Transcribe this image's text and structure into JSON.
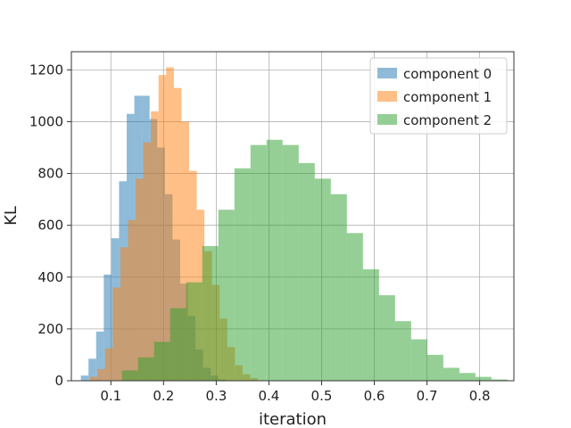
{
  "chart_data": {
    "type": "histogram",
    "xlabel": "iteration",
    "ylabel": "KL",
    "xlim": [
      0.025,
      0.865
    ],
    "ylim": [
      0,
      1270
    ],
    "xticks": [
      0.1,
      0.2,
      0.3,
      0.4,
      0.5,
      0.6,
      0.7,
      0.8
    ],
    "xtick_labels": [
      "0.1",
      "0.2",
      "0.3",
      "0.4",
      "0.5",
      "0.6",
      "0.7",
      "0.8"
    ],
    "yticks": [
      0,
      200,
      400,
      600,
      800,
      1000,
      1200
    ],
    "ytick_labels": [
      "0",
      "200",
      "400",
      "600",
      "800",
      "1000",
      "1200"
    ],
    "grid": true,
    "legend_position": "top-right",
    "bar_alpha": 0.5,
    "series": [
      {
        "name": "component 0",
        "color": "#1f77b4",
        "bin_start": 0.043,
        "bin_width": 0.0145,
        "counts": [
          20,
          85,
          190,
          410,
          550,
          770,
          1030,
          1100,
          1100,
          1010,
          900,
          720,
          545,
          375,
          250,
          120,
          50,
          20,
          5
        ]
      },
      {
        "name": "component 1",
        "color": "#ff7f0e",
        "bin_start": 0.06,
        "bin_width": 0.0145,
        "counts": [
          15,
          45,
          125,
          360,
          515,
          620,
          780,
          920,
          1040,
          1180,
          1210,
          1130,
          1000,
          810,
          660,
          500,
          370,
          240,
          130,
          60,
          25,
          10
        ]
      },
      {
        "name": "component 2",
        "color": "#2ca02c",
        "bin_start": 0.121,
        "bin_width": 0.0305,
        "counts": [
          40,
          90,
          150,
          280,
          380,
          520,
          660,
          820,
          910,
          930,
          910,
          840,
          780,
          720,
          570,
          430,
          330,
          230,
          160,
          100,
          50,
          30,
          15,
          5
        ]
      }
    ]
  }
}
